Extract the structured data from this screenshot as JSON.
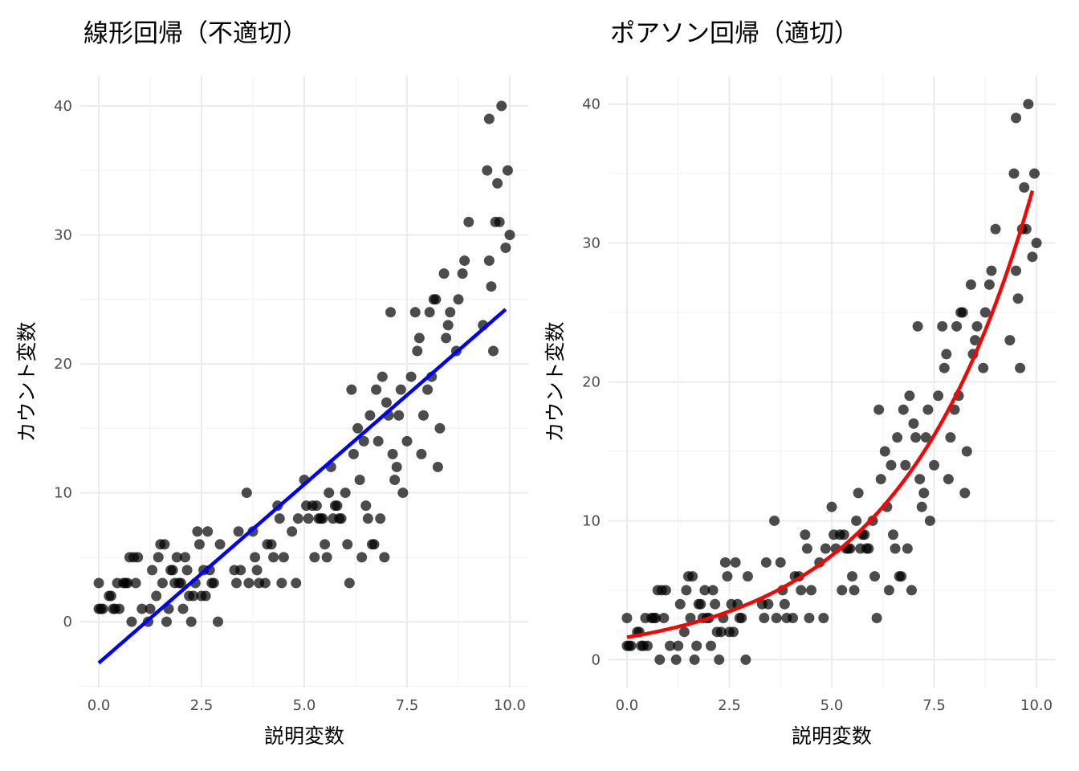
{
  "chart_data": [
    {
      "type": "scatter",
      "title": "線形回帰（不適切）",
      "xlabel": "説明変数",
      "ylabel": "カウント変数",
      "xlim": [
        -0.45,
        10.45
      ],
      "ylim": [
        -5.1,
        42.3
      ],
      "xticks": [
        "0.0",
        "2.5",
        "5.0",
        "7.5",
        "10.0"
      ],
      "xtick_values": [
        0,
        2.5,
        5,
        7.5,
        10
      ],
      "yticks": [
        "0",
        "10",
        "20",
        "30",
        "40"
      ],
      "ytick_values": [
        0,
        10,
        20,
        30,
        40
      ],
      "grid": true,
      "fit": {
        "kind": "linear",
        "intercept": -3.2,
        "slope": 2.77,
        "x_range": [
          0,
          9.9
        ],
        "color": "#0000ff"
      },
      "points": [
        [
          0.0,
          1
        ],
        [
          0.05,
          1
        ],
        [
          0.1,
          1
        ],
        [
          0.0,
          3
        ],
        [
          0.25,
          2
        ],
        [
          0.3,
          2
        ],
        [
          0.35,
          1
        ],
        [
          0.4,
          1
        ],
        [
          0.45,
          3
        ],
        [
          0.5,
          1
        ],
        [
          0.6,
          3
        ],
        [
          0.65,
          3
        ],
        [
          0.7,
          3
        ],
        [
          0.75,
          5
        ],
        [
          0.85,
          5
        ],
        [
          0.8,
          0
        ],
        [
          0.9,
          3
        ],
        [
          0.95,
          5
        ],
        [
          1.05,
          1
        ],
        [
          1.2,
          0
        ],
        [
          1.25,
          1
        ],
        [
          1.3,
          4
        ],
        [
          1.4,
          2
        ],
        [
          1.45,
          5
        ],
        [
          1.5,
          6
        ],
        [
          1.55,
          3
        ],
        [
          1.6,
          6
        ],
        [
          1.65,
          0
        ],
        [
          1.7,
          1
        ],
        [
          1.75,
          4
        ],
        [
          1.8,
          4
        ],
        [
          1.85,
          3
        ],
        [
          1.9,
          5
        ],
        [
          1.95,
          3
        ],
        [
          2.0,
          3
        ],
        [
          2.05,
          1
        ],
        [
          2.1,
          5
        ],
        [
          2.15,
          4
        ],
        [
          2.2,
          2
        ],
        [
          2.25,
          0
        ],
        [
          2.3,
          2
        ],
        [
          2.35,
          3
        ],
        [
          2.4,
          7
        ],
        [
          2.45,
          6
        ],
        [
          2.5,
          2
        ],
        [
          2.55,
          4
        ],
        [
          2.6,
          2
        ],
        [
          2.65,
          7
        ],
        [
          2.7,
          4
        ],
        [
          2.75,
          3
        ],
        [
          2.8,
          3
        ],
        [
          2.9,
          0
        ],
        [
          2.95,
          6
        ],
        [
          3.3,
          4
        ],
        [
          3.35,
          3
        ],
        [
          3.4,
          7
        ],
        [
          3.45,
          4
        ],
        [
          3.6,
          10
        ],
        [
          3.65,
          3
        ],
        [
          3.75,
          7
        ],
        [
          3.8,
          5
        ],
        [
          3.85,
          4
        ],
        [
          3.9,
          3
        ],
        [
          4.05,
          3
        ],
        [
          4.1,
          6
        ],
        [
          4.2,
          6
        ],
        [
          4.25,
          5
        ],
        [
          4.35,
          9
        ],
        [
          4.4,
          8
        ],
        [
          4.45,
          3
        ],
        [
          4.5,
          5
        ],
        [
          4.7,
          7
        ],
        [
          4.8,
          3
        ],
        [
          4.85,
          8
        ],
        [
          5.0,
          11
        ],
        [
          5.05,
          9
        ],
        [
          5.1,
          8
        ],
        [
          5.2,
          9
        ],
        [
          5.25,
          5
        ],
        [
          5.3,
          9
        ],
        [
          5.35,
          8
        ],
        [
          5.4,
          8
        ],
        [
          5.45,
          8
        ],
        [
          5.5,
          6
        ],
        [
          5.55,
          5
        ],
        [
          5.6,
          10
        ],
        [
          5.65,
          12
        ],
        [
          5.7,
          8
        ],
        [
          5.75,
          9
        ],
        [
          5.8,
          9
        ],
        [
          5.85,
          8
        ],
        [
          5.9,
          8
        ],
        [
          6.0,
          10
        ],
        [
          6.05,
          6
        ],
        [
          6.1,
          3
        ],
        [
          6.15,
          18
        ],
        [
          6.2,
          13
        ],
        [
          6.3,
          15
        ],
        [
          6.35,
          11
        ],
        [
          6.4,
          5
        ],
        [
          6.45,
          14
        ],
        [
          6.5,
          9
        ],
        [
          6.55,
          8
        ],
        [
          6.6,
          16
        ],
        [
          6.65,
          6
        ],
        [
          6.7,
          6
        ],
        [
          6.75,
          18
        ],
        [
          6.8,
          14
        ],
        [
          6.85,
          8
        ],
        [
          6.9,
          19
        ],
        [
          6.95,
          5
        ],
        [
          7.0,
          17
        ],
        [
          7.05,
          16
        ],
        [
          7.1,
          24
        ],
        [
          7.15,
          13
        ],
        [
          7.2,
          11
        ],
        [
          7.25,
          12
        ],
        [
          7.3,
          16
        ],
        [
          7.35,
          18
        ],
        [
          7.4,
          10
        ],
        [
          7.5,
          14
        ],
        [
          7.6,
          19
        ],
        [
          7.7,
          24
        ],
        [
          7.75,
          21
        ],
        [
          7.8,
          22
        ],
        [
          7.85,
          13
        ],
        [
          7.9,
          16
        ],
        [
          8.0,
          18
        ],
        [
          8.05,
          24
        ],
        [
          8.1,
          19
        ],
        [
          8.15,
          25
        ],
        [
          8.2,
          25
        ],
        [
          8.25,
          12
        ],
        [
          8.3,
          15
        ],
        [
          8.4,
          27
        ],
        [
          8.45,
          22
        ],
        [
          8.5,
          23
        ],
        [
          8.55,
          24
        ],
        [
          8.7,
          21
        ],
        [
          8.75,
          25
        ],
        [
          8.85,
          27
        ],
        [
          8.9,
          28
        ],
        [
          9.0,
          31
        ],
        [
          9.35,
          23
        ],
        [
          9.5,
          28
        ],
        [
          9.55,
          26
        ],
        [
          9.6,
          21
        ],
        [
          9.45,
          35
        ],
        [
          9.5,
          39
        ],
        [
          9.65,
          31
        ],
        [
          9.7,
          34
        ],
        [
          9.75,
          31
        ],
        [
          9.8,
          40
        ],
        [
          9.9,
          29
        ],
        [
          9.95,
          35
        ],
        [
          10.0,
          30
        ]
      ]
    },
    {
      "type": "scatter",
      "title": "ポアソン回帰（適切）",
      "xlabel": "説明変数",
      "ylabel": "カウント変数",
      "xlim": [
        -0.45,
        10.45
      ],
      "ylim": [
        -2.0,
        42.0
      ],
      "xticks": [
        "0.0",
        "2.5",
        "5.0",
        "7.5",
        "10.0"
      ],
      "xtick_values": [
        0,
        2.5,
        5,
        7.5,
        10
      ],
      "yticks": [
        "0",
        "10",
        "20",
        "30",
        "40"
      ],
      "ytick_values": [
        0,
        10,
        20,
        30,
        40
      ],
      "grid": true,
      "fit": {
        "kind": "poisson",
        "intercept_log": 0.48,
        "slope_log": 0.307,
        "x_range": [
          0,
          9.9
        ],
        "color": "#ff0000"
      },
      "points": [
        [
          0.0,
          1
        ],
        [
          0.05,
          1
        ],
        [
          0.1,
          1
        ],
        [
          0.0,
          3
        ],
        [
          0.25,
          2
        ],
        [
          0.3,
          2
        ],
        [
          0.35,
          1
        ],
        [
          0.4,
          1
        ],
        [
          0.45,
          3
        ],
        [
          0.5,
          1
        ],
        [
          0.6,
          3
        ],
        [
          0.65,
          3
        ],
        [
          0.7,
          3
        ],
        [
          0.75,
          5
        ],
        [
          0.85,
          5
        ],
        [
          0.8,
          0
        ],
        [
          0.9,
          3
        ],
        [
          0.95,
          5
        ],
        [
          1.05,
          1
        ],
        [
          1.2,
          0
        ],
        [
          1.25,
          1
        ],
        [
          1.3,
          4
        ],
        [
          1.4,
          2
        ],
        [
          1.45,
          5
        ],
        [
          1.5,
          6
        ],
        [
          1.55,
          3
        ],
        [
          1.6,
          6
        ],
        [
          1.65,
          0
        ],
        [
          1.7,
          1
        ],
        [
          1.75,
          4
        ],
        [
          1.8,
          4
        ],
        [
          1.85,
          3
        ],
        [
          1.9,
          5
        ],
        [
          1.95,
          3
        ],
        [
          2.0,
          3
        ],
        [
          2.05,
          1
        ],
        [
          2.1,
          5
        ],
        [
          2.15,
          4
        ],
        [
          2.2,
          2
        ],
        [
          2.25,
          0
        ],
        [
          2.3,
          2
        ],
        [
          2.35,
          3
        ],
        [
          2.4,
          7
        ],
        [
          2.45,
          6
        ],
        [
          2.5,
          2
        ],
        [
          2.55,
          4
        ],
        [
          2.6,
          2
        ],
        [
          2.65,
          7
        ],
        [
          2.7,
          4
        ],
        [
          2.75,
          3
        ],
        [
          2.8,
          3
        ],
        [
          2.9,
          0
        ],
        [
          2.95,
          6
        ],
        [
          3.3,
          4
        ],
        [
          3.35,
          3
        ],
        [
          3.4,
          7
        ],
        [
          3.45,
          4
        ],
        [
          3.6,
          10
        ],
        [
          3.65,
          3
        ],
        [
          3.75,
          7
        ],
        [
          3.8,
          5
        ],
        [
          3.85,
          4
        ],
        [
          3.9,
          3
        ],
        [
          4.05,
          3
        ],
        [
          4.1,
          6
        ],
        [
          4.2,
          6
        ],
        [
          4.25,
          5
        ],
        [
          4.35,
          9
        ],
        [
          4.4,
          8
        ],
        [
          4.45,
          3
        ],
        [
          4.5,
          5
        ],
        [
          4.7,
          7
        ],
        [
          4.8,
          3
        ],
        [
          4.85,
          8
        ],
        [
          5.0,
          11
        ],
        [
          5.05,
          9
        ],
        [
          5.1,
          8
        ],
        [
          5.2,
          9
        ],
        [
          5.25,
          5
        ],
        [
          5.3,
          9
        ],
        [
          5.35,
          8
        ],
        [
          5.4,
          8
        ],
        [
          5.45,
          8
        ],
        [
          5.5,
          6
        ],
        [
          5.55,
          5
        ],
        [
          5.6,
          10
        ],
        [
          5.65,
          12
        ],
        [
          5.7,
          8
        ],
        [
          5.75,
          9
        ],
        [
          5.8,
          9
        ],
        [
          5.85,
          8
        ],
        [
          5.9,
          8
        ],
        [
          6.0,
          10
        ],
        [
          6.05,
          6
        ],
        [
          6.1,
          3
        ],
        [
          6.15,
          18
        ],
        [
          6.2,
          13
        ],
        [
          6.3,
          15
        ],
        [
          6.35,
          11
        ],
        [
          6.4,
          5
        ],
        [
          6.45,
          14
        ],
        [
          6.5,
          9
        ],
        [
          6.55,
          8
        ],
        [
          6.6,
          16
        ],
        [
          6.65,
          6
        ],
        [
          6.7,
          6
        ],
        [
          6.75,
          18
        ],
        [
          6.8,
          14
        ],
        [
          6.85,
          8
        ],
        [
          6.9,
          19
        ],
        [
          6.95,
          5
        ],
        [
          7.0,
          17
        ],
        [
          7.05,
          16
        ],
        [
          7.1,
          24
        ],
        [
          7.15,
          13
        ],
        [
          7.2,
          11
        ],
        [
          7.25,
          12
        ],
        [
          7.3,
          16
        ],
        [
          7.35,
          18
        ],
        [
          7.4,
          10
        ],
        [
          7.5,
          14
        ],
        [
          7.6,
          19
        ],
        [
          7.7,
          24
        ],
        [
          7.75,
          21
        ],
        [
          7.8,
          22
        ],
        [
          7.85,
          13
        ],
        [
          7.9,
          16
        ],
        [
          8.0,
          18
        ],
        [
          8.05,
          24
        ],
        [
          8.1,
          19
        ],
        [
          8.15,
          25
        ],
        [
          8.2,
          25
        ],
        [
          8.25,
          12
        ],
        [
          8.3,
          15
        ],
        [
          8.4,
          27
        ],
        [
          8.45,
          22
        ],
        [
          8.5,
          23
        ],
        [
          8.55,
          24
        ],
        [
          8.7,
          21
        ],
        [
          8.75,
          25
        ],
        [
          8.85,
          27
        ],
        [
          8.9,
          28
        ],
        [
          9.0,
          31
        ],
        [
          9.35,
          23
        ],
        [
          9.5,
          28
        ],
        [
          9.55,
          26
        ],
        [
          9.6,
          21
        ],
        [
          9.45,
          35
        ],
        [
          9.5,
          39
        ],
        [
          9.65,
          31
        ],
        [
          9.7,
          34
        ],
        [
          9.75,
          31
        ],
        [
          9.8,
          40
        ],
        [
          9.9,
          29
        ],
        [
          9.95,
          35
        ],
        [
          10.0,
          30
        ]
      ]
    }
  ]
}
